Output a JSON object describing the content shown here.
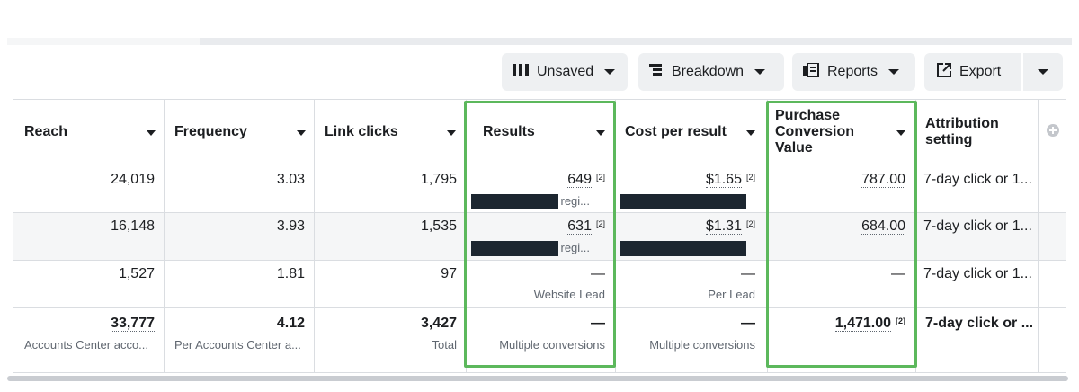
{
  "toolbar": {
    "unsaved": "Unsaved",
    "breakdown": "Breakdown",
    "reports": "Reports",
    "export": "Export"
  },
  "columns": {
    "reach": "Reach",
    "frequency": "Frequency",
    "link_clicks": "Link clicks",
    "results": "Results",
    "cost_per_result": "Cost per result",
    "pcv_line1": "Purchase",
    "pcv_line2": "Conversion",
    "pcv_line3": "Value",
    "attr_line1": "Attribution",
    "attr_line2": "setting"
  },
  "rows": [
    {
      "reach": "24,019",
      "frequency": "3.03",
      "link_clicks": "1,795",
      "results": "649",
      "results_note": "[2]",
      "results_sub": "regi...",
      "cost": "$1.65",
      "cost_note": "[2]",
      "pcv": "787.00",
      "attribution": "7-day click or 1..."
    },
    {
      "reach": "16,148",
      "frequency": "3.93",
      "link_clicks": "1,535",
      "results": "631",
      "results_note": "[2]",
      "results_sub": "regi...",
      "cost": "$1.31",
      "cost_note": "[2]",
      "pcv": "684.00",
      "attribution": "7-day click or 1..."
    },
    {
      "reach": "1,527",
      "frequency": "1.81",
      "link_clicks": "97",
      "results": "—",
      "results_sub": "Website Lead",
      "cost": "—",
      "cost_sub": "Per Lead",
      "pcv": "—",
      "attribution": "7-day click or 1..."
    }
  ],
  "totals": {
    "reach": "33,777",
    "reach_sub": "Accounts Center acco...",
    "frequency": "4.12",
    "frequency_sub": "Per Accounts Center a...",
    "link_clicks": "3,427",
    "link_clicks_sub": "Total",
    "results": "—",
    "results_sub": "Multiple conversions",
    "cost": "—",
    "cost_sub": "Multiple conversions",
    "pcv": "1,471.00",
    "pcv_note": "[2]",
    "attribution": "7-day click or ..."
  },
  "colors": {
    "highlight": "#5cb85c",
    "redaction": "#1c2630",
    "alt_row": "#f5f6f7"
  },
  "icons": [
    "columns-icon",
    "breakdown-icon",
    "reports-icon",
    "export-icon",
    "add-column-icon"
  ]
}
